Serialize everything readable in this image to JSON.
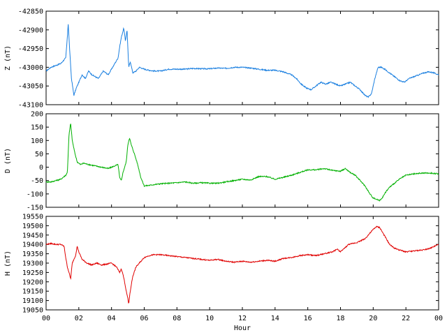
{
  "chart_data": {
    "type": "line",
    "xlabel": "Hour",
    "x_tick_labels": [
      "00",
      "02",
      "04",
      "06",
      "08",
      "10",
      "12",
      "14",
      "16",
      "18",
      "20",
      "22",
      "00"
    ],
    "x_range_hours": [
      0,
      24
    ],
    "grid": false,
    "panels": [
      {
        "ylabel": "Z (nT)",
        "color": "#1a7fe0",
        "ylim": [
          -43100,
          -42850
        ],
        "y_ticks": [
          -43100,
          -43050,
          -43000,
          -42950,
          -42900,
          -42850
        ],
        "series": {
          "x": [
            0,
            0.3,
            0.6,
            0.9,
            1.2,
            1.3,
            1.35,
            1.45,
            1.55,
            1.7,
            1.85,
            2.0,
            2.2,
            2.4,
            2.6,
            2.8,
            3.0,
            3.2,
            3.5,
            3.8,
            4.0,
            4.2,
            4.4,
            4.5,
            4.6,
            4.75,
            4.85,
            4.95,
            5.05,
            5.15,
            5.3,
            5.5,
            5.7,
            6.0,
            6.3,
            6.6,
            7.0,
            7.5,
            8.0,
            8.5,
            9.0,
            9.5,
            10.0,
            10.5,
            11.0,
            11.5,
            12.0,
            12.5,
            13.0,
            13.5,
            14.0,
            14.5,
            15.0,
            15.3,
            15.6,
            15.9,
            16.2,
            16.5,
            16.8,
            17.1,
            17.4,
            17.7,
            18.0,
            18.3,
            18.6,
            18.9,
            19.2,
            19.5,
            19.7,
            19.9,
            20.1,
            20.3,
            20.5,
            20.7,
            21.0,
            21.3,
            21.6,
            21.9,
            22.2,
            22.5,
            22.8,
            23.1,
            23.4,
            23.7,
            24.0
          ],
          "values": [
            -43010,
            -43000,
            -42995,
            -42990,
            -42975,
            -42920,
            -42882,
            -42960,
            -43030,
            -43075,
            -43055,
            -43040,
            -43020,
            -43030,
            -43010,
            -43020,
            -43025,
            -43030,
            -43010,
            -43020,
            -43005,
            -42990,
            -42975,
            -42945,
            -42920,
            -42895,
            -42930,
            -42900,
            -43000,
            -42985,
            -43015,
            -43010,
            -43000,
            -43005,
            -43008,
            -43010,
            -43010,
            -43005,
            -43005,
            -43005,
            -43003,
            -43004,
            -43004,
            -43002,
            -43003,
            -43000,
            -43000,
            -43002,
            -43005,
            -43008,
            -43008,
            -43012,
            -43020,
            -43030,
            -43045,
            -43055,
            -43060,
            -43050,
            -43040,
            -43045,
            -43040,
            -43045,
            -43050,
            -43045,
            -43040,
            -43050,
            -43060,
            -43075,
            -43080,
            -43070,
            -43030,
            -43000,
            -43000,
            -43005,
            -43015,
            -43025,
            -43035,
            -43040,
            -43030,
            -43025,
            -43020,
            -43015,
            -43012,
            -43015,
            -43020
          ]
        }
      },
      {
        "ylabel": "D (nT)",
        "color": "#00b000",
        "ylim": [
          -150,
          200
        ],
        "y_ticks": [
          -150,
          -100,
          -50,
          0,
          50,
          100,
          150,
          200
        ],
        "series": {
          "x": [
            0,
            0.3,
            0.6,
            0.9,
            1.2,
            1.3,
            1.4,
            1.5,
            1.6,
            1.75,
            1.9,
            2.1,
            2.3,
            2.6,
            3.0,
            3.4,
            3.8,
            4.2,
            4.4,
            4.5,
            4.6,
            4.7,
            4.8,
            4.9,
            5.0,
            5.1,
            5.2,
            5.4,
            5.6,
            5.8,
            6.0,
            6.3,
            6.6,
            7.0,
            7.5,
            8.0,
            8.5,
            9.0,
            9.5,
            10.0,
            10.5,
            11.0,
            11.5,
            12.0,
            12.5,
            13.0,
            13.5,
            14.0,
            14.5,
            15.0,
            15.5,
            16.0,
            16.5,
            17.0,
            17.5,
            18.0,
            18.3,
            18.6,
            18.9,
            19.2,
            19.5,
            19.8,
            20.0,
            20.2,
            20.4,
            20.6,
            20.8,
            21.0,
            21.3,
            21.6,
            22.0,
            22.5,
            23.0,
            23.5,
            24.0
          ],
          "values": [
            -55,
            -55,
            -50,
            -45,
            -30,
            -20,
            120,
            165,
            100,
            55,
            20,
            10,
            15,
            10,
            5,
            0,
            -5,
            5,
            10,
            -40,
            -50,
            -20,
            0,
            20,
            85,
            110,
            85,
            50,
            10,
            -40,
            -70,
            -68,
            -65,
            -62,
            -60,
            -58,
            -55,
            -60,
            -58,
            -60,
            -60,
            -55,
            -50,
            -45,
            -48,
            -35,
            -35,
            -45,
            -38,
            -30,
            -20,
            -10,
            -10,
            -5,
            -12,
            -15,
            -5,
            -20,
            -30,
            -50,
            -70,
            -100,
            -115,
            -120,
            -125,
            -110,
            -90,
            -75,
            -60,
            -45,
            -30,
            -25,
            -22,
            -22,
            -25
          ]
        }
      },
      {
        "ylabel": "H (nT)",
        "color": "#e00000",
        "ylim": [
          19050,
          19550
        ],
        "y_ticks": [
          19050,
          19100,
          19150,
          19200,
          19250,
          19300,
          19350,
          19400,
          19450,
          19500,
          19550
        ],
        "series": {
          "x": [
            0,
            0.3,
            0.6,
            0.9,
            1.1,
            1.2,
            1.3,
            1.4,
            1.5,
            1.6,
            1.8,
            1.9,
            2.0,
            2.2,
            2.5,
            2.8,
            3.1,
            3.4,
            3.7,
            4.0,
            4.3,
            4.5,
            4.6,
            4.7,
            4.8,
            4.9,
            5.0,
            5.05,
            5.1,
            5.2,
            5.3,
            5.5,
            5.8,
            6.0,
            6.3,
            6.6,
            7.0,
            7.5,
            8.0,
            8.5,
            9.0,
            9.5,
            10.0,
            10.5,
            11.0,
            11.5,
            12.0,
            12.5,
            13.0,
            13.5,
            14.0,
            14.5,
            15.0,
            15.5,
            16.0,
            16.5,
            17.0,
            17.5,
            17.8,
            18.0,
            18.5,
            19.0,
            19.5,
            19.8,
            20.0,
            20.2,
            20.4,
            20.6,
            20.8,
            21.0,
            21.3,
            21.6,
            22.0,
            22.5,
            23.0,
            23.5,
            24.0
          ],
          "values": [
            19400,
            19405,
            19400,
            19400,
            19390,
            19330,
            19280,
            19250,
            19215,
            19300,
            19340,
            19390,
            19360,
            19320,
            19300,
            19290,
            19300,
            19290,
            19295,
            19300,
            19280,
            19250,
            19270,
            19240,
            19200,
            19150,
            19110,
            19080,
            19120,
            19180,
            19230,
            19280,
            19310,
            19330,
            19340,
            19345,
            19345,
            19340,
            19335,
            19330,
            19325,
            19320,
            19315,
            19320,
            19310,
            19305,
            19310,
            19305,
            19310,
            19315,
            19310,
            19325,
            19330,
            19340,
            19345,
            19340,
            19350,
            19360,
            19375,
            19360,
            19400,
            19410,
            19430,
            19460,
            19480,
            19495,
            19490,
            19460,
            19430,
            19400,
            19380,
            19370,
            19360,
            19365,
            19370,
            19380,
            19400
          ]
        }
      }
    ]
  }
}
